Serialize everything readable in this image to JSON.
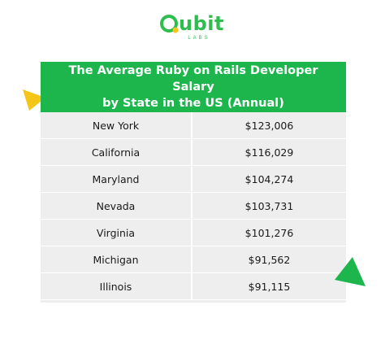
{
  "logo": {
    "word": "ubit",
    "sub": "LABS",
    "brand_color": "#2dbe4e"
  },
  "table": {
    "title_line1": "The Average Ruby on Rails Developer Salary",
    "title_line2": "by State in the US (Annual)",
    "header_color": "#1cb64c",
    "rows": [
      {
        "state": "New York",
        "salary": "$123,006"
      },
      {
        "state": "California",
        "salary": "$116,029"
      },
      {
        "state": "Maryland",
        "salary": "$104,274"
      },
      {
        "state": "Nevada",
        "salary": "$103,731"
      },
      {
        "state": "Virginia",
        "salary": "$101,276"
      },
      {
        "state": "Michigan",
        "salary": "$91,562"
      },
      {
        "state": "Illinois",
        "salary": "$91,115"
      }
    ]
  },
  "decorations": {
    "left_triangle_color": "#f5c518",
    "right_triangle_color": "#1cb64c"
  }
}
